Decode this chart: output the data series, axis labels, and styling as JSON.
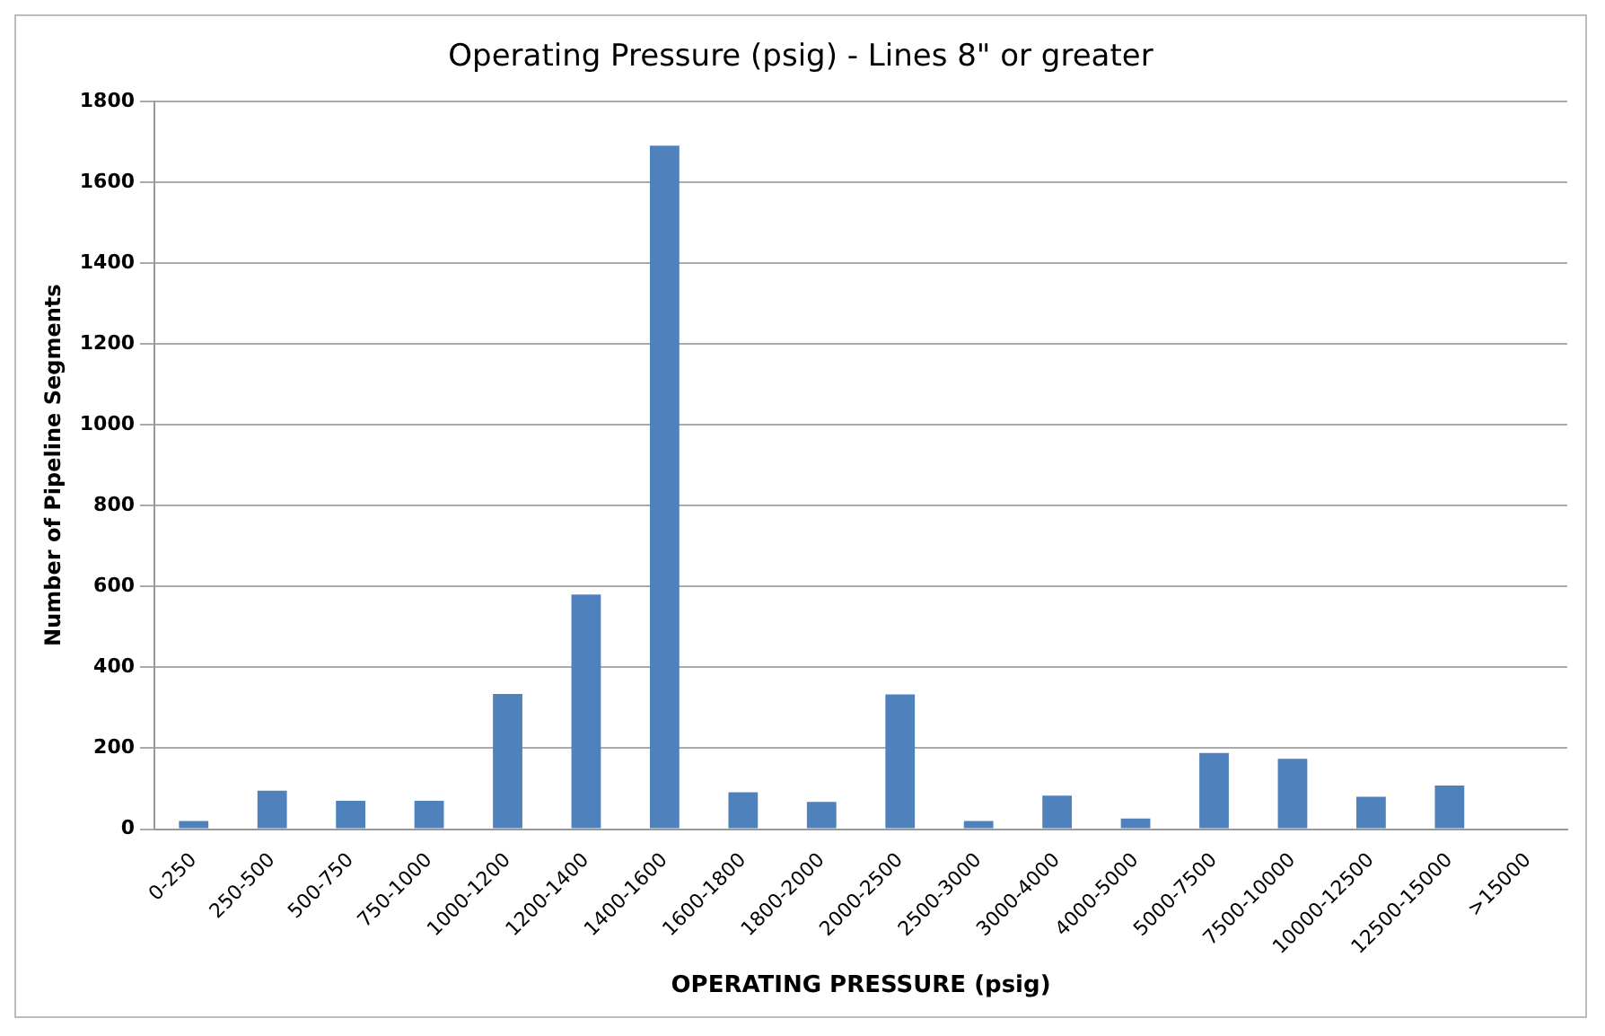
{
  "chart_data": {
    "type": "bar",
    "title": "Operating Pressure (psig) - Lines 8\" or greater",
    "xlabel": "OPERATING PRESSURE (psig)",
    "ylabel": "Number of Pipeline Segments",
    "categories": [
      "0-250",
      "250-500",
      "500-750",
      "750-1000",
      "1000-1200",
      "1200-1400",
      "1400-1600",
      "1600-1800",
      "1800-2000",
      "2000-2500",
      "2500-3000",
      "3000-4000",
      "4000-5000",
      "5000-7500",
      "7500-10000",
      "10000-12500",
      "12500-15000",
      ">15000"
    ],
    "values": [
      20,
      95,
      70,
      70,
      334,
      580,
      1690,
      91,
      67,
      333,
      20,
      83,
      26,
      188,
      174,
      80,
      108,
      0
    ],
    "color": "#4f81bd",
    "ylim": [
      0,
      1800
    ],
    "yticks": [
      0,
      200,
      400,
      600,
      800,
      1000,
      1200,
      1400,
      1600,
      1800
    ],
    "grid": "y",
    "legend": false
  }
}
